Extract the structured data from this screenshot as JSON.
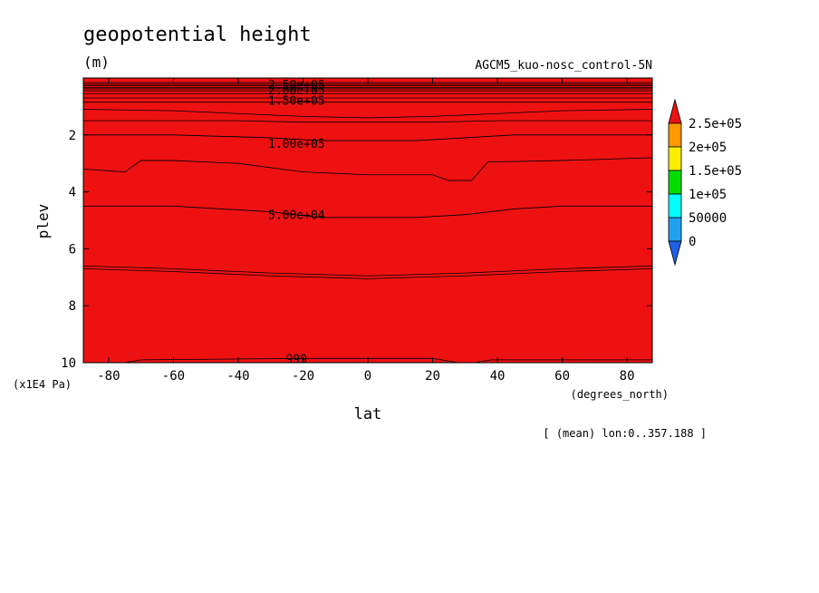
{
  "chart_data": {
    "type": "contour",
    "title": "geopotential height",
    "units": "(m)",
    "run_label": "AGCM5_kuo-nosc_control-5N",
    "xlabel": "lat",
    "xunits": "(degrees_north)",
    "ylabel": "plev",
    "yunits": "(x1E4 Pa)",
    "footnote": "[ (mean) lon:0..357.188 ]",
    "xlim": [
      -87.8,
      87.8
    ],
    "ylim": [
      10,
      0
    ],
    "xticks": [
      -80,
      -60,
      -40,
      -20,
      0,
      20,
      40,
      60,
      80
    ],
    "xtick_labels": [
      "-80",
      "-60",
      "-40",
      "-20",
      "0",
      "20",
      "40",
      "60",
      "80"
    ],
    "yticks": [
      2,
      4,
      6,
      8,
      10
    ],
    "ytick_labels": [
      "2",
      "4",
      "6",
      "8",
      "10"
    ],
    "colorbar": {
      "levels": [
        0,
        50000,
        100000,
        150000,
        200000,
        250000
      ],
      "labels": [
        "0",
        "50000",
        "1e+05",
        "1.5e+05",
        "2e+05",
        "2.5e+05"
      ],
      "colors": [
        "#1f5fe6",
        "#22a0f0",
        "#00ffff",
        "#00dd00",
        "#ffee00",
        "#ff9900",
        "#ee1111"
      ]
    },
    "bands": [
      {
        "level_low": 0,
        "level_high": 50000,
        "color": "#22a0f0",
        "top": [
          [
            -87.8,
            4.5
          ],
          [
            -60,
            4.5
          ],
          [
            -30,
            4.7
          ],
          [
            -15,
            4.9
          ],
          [
            0,
            4.9
          ],
          [
            15,
            4.9
          ],
          [
            30,
            4.8
          ],
          [
            45,
            4.6
          ],
          [
            60,
            4.5
          ],
          [
            87.8,
            4.5
          ]
        ]
      },
      {
        "level_low": 50000,
        "level_high": 100000,
        "color": "#00ffff",
        "top": [
          [
            -87.8,
            2.0
          ],
          [
            -60,
            2.0
          ],
          [
            -30,
            2.1
          ],
          [
            -15,
            2.2
          ],
          [
            0,
            2.2
          ],
          [
            15,
            2.2
          ],
          [
            30,
            2.1
          ],
          [
            45,
            2.0
          ],
          [
            60,
            2.0
          ],
          [
            87.8,
            2.0
          ]
        ]
      },
      {
        "level_low": 100000,
        "level_high": 150000,
        "color": "#00dd00",
        "top": [
          [
            -87.8,
            0.85
          ],
          [
            87.8,
            0.85
          ]
        ]
      },
      {
        "level_low": 150000,
        "level_high": 200000,
        "color": "#ffee00",
        "top": [
          [
            -87.8,
            0.38
          ],
          [
            87.8,
            0.38
          ]
        ]
      },
      {
        "level_low": 200000,
        "level_high": 250000,
        "color": "#ff9900",
        "top": [
          [
            -87.8,
            0.22
          ],
          [
            87.8,
            0.22
          ]
        ]
      },
      {
        "level_low": 250000,
        "level_high": null,
        "color": "#ee1111",
        "top": [
          [
            -87.8,
            0.0
          ],
          [
            87.8,
            0.0
          ]
        ]
      }
    ],
    "contour_lines": [
      [
        [
          -87.8,
          0.16
        ],
        [
          87.8,
          0.16
        ]
      ],
      [
        [
          -87.8,
          0.27
        ],
        [
          87.8,
          0.27
        ]
      ],
      [
        [
          -87.8,
          0.33
        ],
        [
          87.8,
          0.33
        ]
      ],
      [
        [
          -87.8,
          0.45
        ],
        [
          87.8,
          0.45
        ]
      ],
      [
        [
          -87.8,
          0.55
        ],
        [
          87.8,
          0.55
        ]
      ],
      [
        [
          -87.8,
          0.7
        ],
        [
          87.8,
          0.7
        ]
      ],
      [
        [
          -87.8,
          1.1
        ],
        [
          -60,
          1.15
        ],
        [
          -40,
          1.25
        ],
        [
          -20,
          1.35
        ],
        [
          0,
          1.4
        ],
        [
          20,
          1.35
        ],
        [
          40,
          1.25
        ],
        [
          60,
          1.15
        ],
        [
          87.8,
          1.1
        ]
      ],
      [
        [
          -87.8,
          1.5
        ],
        [
          -60,
          1.5
        ],
        [
          -40,
          1.5
        ],
        [
          -20,
          1.55
        ],
        [
          0,
          1.55
        ],
        [
          20,
          1.55
        ],
        [
          40,
          1.5
        ],
        [
          87.8,
          1.5
        ]
      ],
      [
        [
          -87.8,
          3.2
        ],
        [
          -75,
          3.3
        ],
        [
          -70,
          2.9
        ],
        [
          -60,
          2.9
        ],
        [
          -40,
          3.0
        ],
        [
          -20,
          3.3
        ],
        [
          0,
          3.4
        ],
        [
          20,
          3.4
        ],
        [
          25,
          3.6
        ],
        [
          32,
          3.6
        ],
        [
          37,
          2.95
        ],
        [
          60,
          2.9
        ],
        [
          87.8,
          2.8
        ]
      ],
      [
        [
          -87.8,
          6.6
        ],
        [
          -60,
          6.7
        ],
        [
          -30,
          6.85
        ],
        [
          0,
          6.95
        ],
        [
          30,
          6.85
        ],
        [
          60,
          6.7
        ],
        [
          87.8,
          6.6
        ]
      ],
      [
        [
          -87.8,
          6.7
        ],
        [
          -60,
          6.8
        ],
        [
          -30,
          6.95
        ],
        [
          0,
          7.05
        ],
        [
          30,
          6.95
        ],
        [
          60,
          6.8
        ],
        [
          87.8,
          6.7
        ]
      ],
      [
        [
          -87.8,
          10.0
        ],
        [
          -75,
          10.0
        ],
        [
          -70,
          9.9
        ],
        [
          -20,
          9.85
        ],
        [
          0,
          9.85
        ],
        [
          20,
          9.85
        ],
        [
          28,
          10.0
        ],
        [
          33,
          10.0
        ],
        [
          38,
          9.9
        ],
        [
          87.8,
          9.9
        ]
      ]
    ],
    "contour_labels": [
      {
        "text": "2.50e+05",
        "x": -22,
        "y": 0.23
      },
      {
        "text": "2.00e+05",
        "x": -22,
        "y": 0.42
      },
      {
        "text": "1.50e+05",
        "x": -22,
        "y": 0.78
      },
      {
        "text": "1.00e+05",
        "x": -22,
        "y": 2.3
      },
      {
        "text": "5.00e+04",
        "x": -22,
        "y": 4.8
      },
      {
        "text": "999",
        "x": -22,
        "y": 9.85
      }
    ]
  }
}
